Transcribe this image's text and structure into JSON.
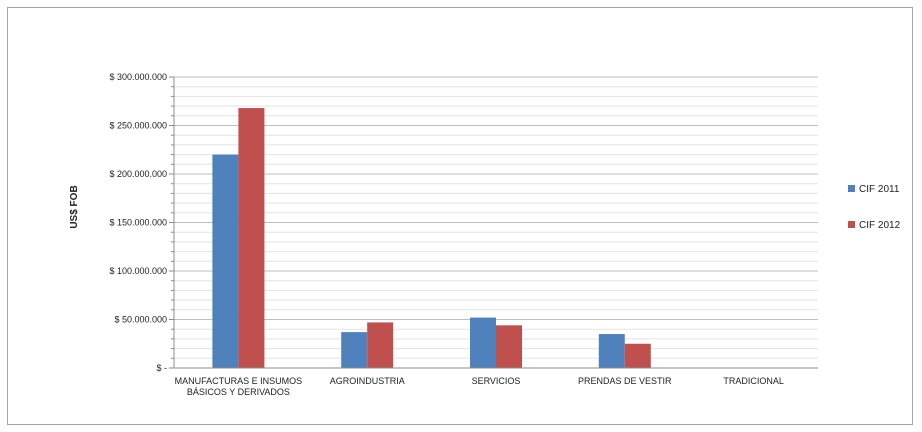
{
  "chart_data": {
    "type": "bar",
    "title": "",
    "xlabel": "",
    "ylabel": "US$ FOB",
    "ylim": [
      0,
      300000000
    ],
    "major_step": 50000000,
    "minor_step": 10000000,
    "grid": true,
    "legend_position": "right",
    "yticks": [
      "$ -",
      "$ 50.000.000",
      "$ 100.000.000",
      "$ 150.000.000",
      "$ 200.000.000",
      "$ 250.000.000",
      "$ 300.000.000"
    ],
    "categories": [
      [
        "MANUFACTURAS E INSUMOS",
        "BÁSICOS Y DERIVADOS"
      ],
      [
        "AGROINDUSTRIA"
      ],
      [
        "SERVICIOS"
      ],
      [
        "PRENDAS DE VESTIR"
      ],
      [
        "TRADICIONAL"
      ]
    ],
    "series": [
      {
        "name": "CIF 2011",
        "color": "#4f81bd",
        "values": [
          220000000,
          37000000,
          52000000,
          35000000,
          0
        ]
      },
      {
        "name": "CIF 2012",
        "color": "#c0504d",
        "values": [
          268000000,
          47000000,
          44000000,
          25000000,
          0
        ]
      }
    ]
  }
}
